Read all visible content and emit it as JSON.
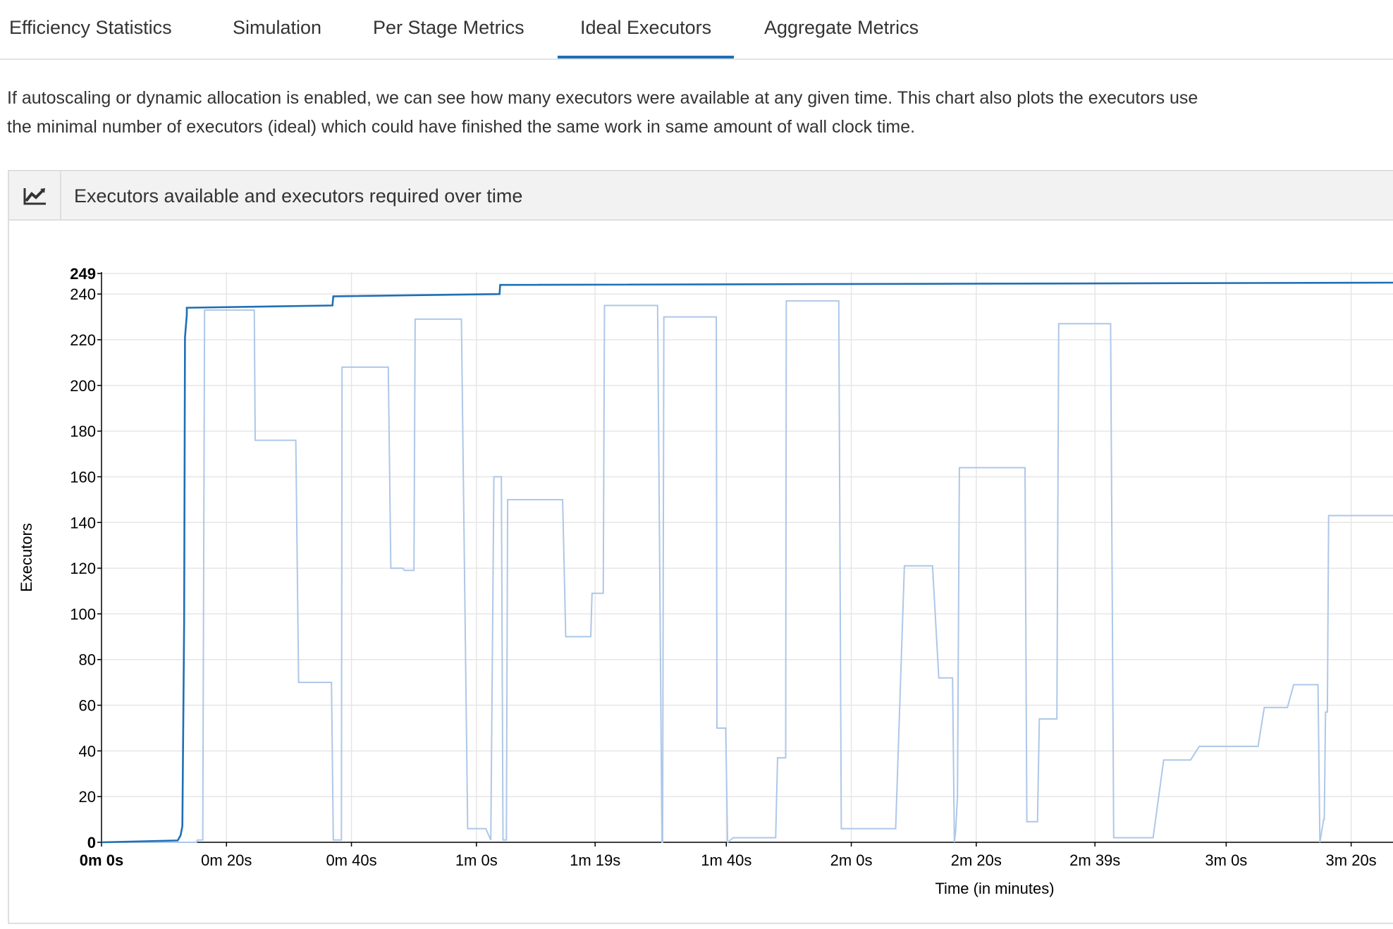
{
  "tabs": [
    "Efficiency Statistics",
    "Simulation",
    "Per Stage Metrics",
    "Ideal Executors",
    "Aggregate Metrics"
  ],
  "active_tab": 3,
  "description": [
    "If autoscaling or dynamic allocation is enabled, we can see how many executors were available at any given time. This chart also plots the executors use",
    "the minimal number of executors (ideal) which could have finished the same work in same amount of wall clock time."
  ],
  "chart_data": {
    "type": "line",
    "title": "Executors available and executors required over time",
    "x_label": "Time (in minutes)",
    "y_label": "Executors",
    "xlim": [
      0,
      206.7
    ],
    "ylim": [
      0,
      249
    ],
    "xticks": [
      {
        "value": 0,
        "label": "0m 0s"
      },
      {
        "value": 20,
        "label": "0m 20s"
      },
      {
        "value": 40,
        "label": "0m 40s"
      },
      {
        "value": 60,
        "label": "1m 0s"
      },
      {
        "value": 79,
        "label": "1m 19s"
      },
      {
        "value": 100,
        "label": "1m 40s"
      },
      {
        "value": 120,
        "label": "2m 0s"
      },
      {
        "value": 140,
        "label": "2m 20s"
      },
      {
        "value": 159,
        "label": "2m 39s"
      },
      {
        "value": 180,
        "label": "3m 0s"
      },
      {
        "value": 200,
        "label": "3m 20s"
      }
    ],
    "yticks": [
      0,
      20,
      40,
      60,
      80,
      100,
      120,
      140,
      160,
      180,
      200,
      220,
      240,
      249
    ],
    "grid": true,
    "series": [
      {
        "color": "#1f6fb4",
        "x": [
          0,
          12.2,
          12.65,
          12.94,
          13.22,
          13.36,
          13.65,
          13.65,
          36.96,
          37.1,
          63.7,
          63.8,
          206.7
        ],
        "values": [
          0,
          0.8,
          3,
          7,
          96,
          221,
          231,
          234,
          235,
          239,
          240,
          244,
          245
        ]
      },
      {
        "color": "#aec7e8",
        "x": [
          0,
          15.2,
          15.35,
          16.2,
          16.5,
          24.45,
          24.6,
          31.1,
          31.55,
          36.8,
          37.1,
          38.4,
          38.5,
          45.9,
          46.3,
          48.2,
          48.5,
          50.0,
          50.2,
          57.6,
          58.6,
          61.5,
          62.3,
          62.8,
          64.0,
          64.25,
          64.8,
          65.0,
          73.8,
          74.3,
          78.3,
          78.5,
          80.3,
          80.5,
          89.0,
          89.7,
          89.8,
          90.0,
          98.4,
          98.5,
          99.9,
          100.2,
          101.1,
          107.9,
          108.2,
          109.5,
          109.6,
          118.0,
          118.4,
          127.1,
          128.5,
          133.0,
          134.0,
          136.2,
          136.5,
          136.7,
          137.0,
          137.3,
          147.8,
          148.1,
          149.8,
          150.1,
          152.9,
          153.2,
          161.5,
          162.0,
          168.3,
          170.0,
          174.3,
          175.7,
          185.1,
          186.1,
          189.8,
          190.8,
          194.7,
          195.0,
          195.6,
          195.7,
          195.9,
          196.2,
          196.4,
          206.7
        ],
        "values": [
          0,
          0,
          1,
          1,
          233,
          233,
          176,
          176,
          70,
          70,
          1,
          1,
          208,
          208,
          120,
          120,
          119,
          119,
          229,
          229,
          6,
          6,
          1,
          160,
          160,
          1,
          1,
          150,
          150,
          90,
          90,
          109,
          109,
          235,
          235,
          0,
          0,
          230,
          230,
          50,
          50,
          0,
          2,
          2,
          37,
          37,
          237,
          237,
          6,
          6,
          121,
          121,
          72,
          72,
          0,
          5,
          20,
          164,
          164,
          9,
          9,
          54,
          54,
          227,
          227,
          2,
          2,
          36,
          36,
          42,
          42,
          59,
          59,
          69,
          69,
          0,
          10,
          10,
          57,
          57,
          143,
          143
        ]
      }
    ]
  }
}
